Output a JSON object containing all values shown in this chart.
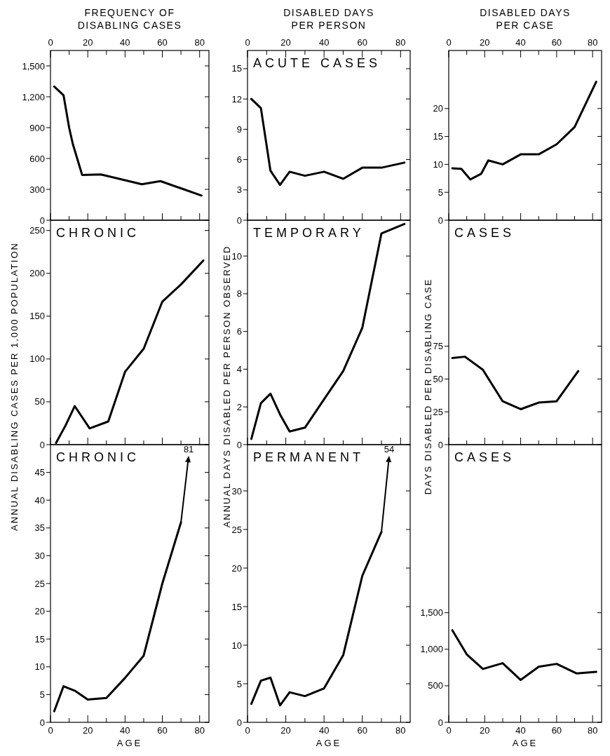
{
  "chart_data": [
    {
      "type": "line",
      "title": "FREQUENCY OF DISABLING CASES",
      "xlim": [
        0,
        85
      ],
      "xticks": [
        0,
        {
          "value": 10,
          "label": null
        },
        20,
        {
          "value": 30,
          "label": null
        },
        40,
        {
          "value": 50,
          "label": null
        },
        60,
        {
          "value": 70,
          "label": null
        },
        80
      ],
      "ylim": [
        0,
        1650
      ],
      "yticks": [
        0,
        300,
        600,
        900,
        {
          "value": 1200,
          "label": "1,200"
        },
        {
          "value": 1500,
          "label": "1,500"
        }
      ],
      "x": [
        2,
        7,
        10,
        12,
        17,
        27,
        49,
        59,
        70,
        81
      ],
      "series": [
        {
          "color": "#000000",
          "values": [
            1300,
            1215,
            900,
            740,
            440,
            445,
            350,
            380,
            310,
            240
          ]
        }
      ]
    },
    {
      "type": "line",
      "title": "DISABLED DAYS PER PERSON",
      "subtitle": "ACUTE CASES",
      "xlim": [
        0,
        85
      ],
      "xticks": [
        0,
        {
          "value": 10,
          "label": null
        },
        20,
        {
          "value": 30,
          "label": null
        },
        40,
        {
          "value": 50,
          "label": null
        },
        60,
        {
          "value": 70,
          "label": null
        },
        80
      ],
      "ylim": [
        0,
        16.8
      ],
      "yticks": [
        0,
        3,
        6,
        9,
        12,
        15
      ],
      "x": [
        2,
        7,
        12,
        17,
        22,
        30,
        40,
        50,
        60,
        70,
        82
      ],
      "series": [
        {
          "color": "#000000",
          "values": [
            12,
            11.1,
            4.9,
            3.5,
            4.8,
            4.4,
            4.8,
            4.1,
            5.2,
            5.2,
            5.7
          ]
        }
      ]
    },
    {
      "type": "line",
      "title": "DISABLED DAYS PER CASE",
      "xlim": [
        0,
        85
      ],
      "xticks": [
        0,
        {
          "value": 10,
          "label": null
        },
        20,
        {
          "value": 30,
          "label": null
        },
        40,
        {
          "value": 50,
          "label": null
        },
        60,
        {
          "value": 70,
          "label": null
        },
        80
      ],
      "ylim": [
        0,
        30.4
      ],
      "yticks": [
        0,
        5,
        10,
        15,
        20
      ],
      "x": [
        2,
        7,
        12,
        18,
        22,
        30,
        40,
        50,
        60,
        70,
        82
      ],
      "series": [
        {
          "color": "#000000",
          "values": [
            9.3,
            9.2,
            7.3,
            8.3,
            10.7,
            10,
            11.8,
            11.8,
            13.6,
            16.7,
            24.8
          ]
        }
      ]
    },
    {
      "type": "line",
      "subtitle": "CHRONIC",
      "ylabel": "ANNUAL DISABLING CASES PER 1,000 POPULATION",
      "xlim": [
        0,
        85
      ],
      "xticks": [
        0,
        {
          "value": 10,
          "label": null
        },
        20,
        {
          "value": 30,
          "label": null
        },
        40,
        {
          "value": 50,
          "label": null
        },
        60,
        {
          "value": 70,
          "label": null
        },
        80
      ],
      "tick_labels": "y",
      "ylim": [
        0,
        262
      ],
      "yticks": [
        0,
        50,
        100,
        150,
        200,
        250
      ],
      "x": [
        3,
        8,
        13,
        21,
        31,
        40,
        50,
        60,
        70,
        82
      ],
      "series": [
        {
          "color": "#000000",
          "values": [
            2,
            22,
            45,
            19,
            27,
            85,
            112,
            167,
            187,
            215
          ]
        }
      ]
    },
    {
      "type": "line",
      "subtitle": "TEMPORARY",
      "ylabel": "ANNUAL DAYS DISABLED PER PERSON OBSERVED",
      "xlim": [
        0,
        85
      ],
      "xticks": [
        0,
        {
          "value": 10,
          "label": null
        },
        20,
        {
          "value": 30,
          "label": null
        },
        40,
        {
          "value": 50,
          "label": null
        },
        60,
        {
          "value": 70,
          "label": null
        },
        80
      ],
      "tick_labels": "y",
      "ylim": [
        0,
        11.9
      ],
      "yticks": [
        0,
        2,
        4,
        6,
        8,
        10
      ],
      "x": [
        2,
        7,
        12,
        17,
        22,
        30,
        40,
        50,
        60,
        70,
        82
      ],
      "series": [
        {
          "color": "#000000",
          "values": [
            0.3,
            2.2,
            2.7,
            1.6,
            0.7,
            0.9,
            2.4,
            3.9,
            6.2,
            11.2,
            11.7
          ]
        }
      ]
    },
    {
      "type": "line",
      "subtitle": "CASES",
      "ylabel": "DAYS DISABLED PER DISABLING CASE",
      "xlim": [
        0,
        85
      ],
      "xticks": [
        0,
        {
          "value": 10,
          "label": null
        },
        20,
        {
          "value": 30,
          "label": null
        },
        40,
        {
          "value": 50,
          "label": null
        },
        60,
        {
          "value": 70,
          "label": null
        },
        80
      ],
      "tick_labels": "y",
      "ylim": [
        0,
        171
      ],
      "yticks": [
        0,
        25,
        50,
        75
      ],
      "x": [
        2,
        9,
        19,
        30,
        40,
        50,
        60,
        72
      ],
      "series": [
        {
          "color": "#000000",
          "values": [
            66,
            67,
            57,
            33,
            27,
            32,
            33,
            56
          ]
        }
      ]
    },
    {
      "type": "line",
      "subtitle": "CHRONIC",
      "xlabel": "AGE",
      "xlim": [
        0,
        85
      ],
      "xticks": [
        0,
        {
          "value": 10,
          "label": null
        },
        20,
        {
          "value": 30,
          "label": null
        },
        40,
        {
          "value": 50,
          "label": null
        },
        60,
        {
          "value": 70,
          "label": null
        },
        80
      ],
      "ylim": [
        0,
        50
      ],
      "yticks": [
        0,
        5,
        10,
        15,
        20,
        25,
        30,
        35,
        40,
        45
      ],
      "x": [
        2,
        7,
        13,
        20,
        30,
        40,
        50,
        60,
        70
      ],
      "series": [
        {
          "color": "#000000",
          "values": [
            2,
            6.5,
            5.7,
            4.1,
            4.4,
            8,
            12,
            25,
            36
          ]
        }
      ],
      "annotations": [
        {
          "text": "81",
          "x": 70,
          "y": 36
        }
      ]
    },
    {
      "type": "line",
      "subtitle": "PERMANENT",
      "xlabel": "AGE",
      "xlim": [
        0,
        85
      ],
      "xticks": [
        0,
        {
          "value": 10,
          "label": null
        },
        20,
        {
          "value": 30,
          "label": null
        },
        40,
        {
          "value": 50,
          "label": null
        },
        60,
        {
          "value": 70,
          "label": null
        },
        80
      ],
      "ylim": [
        0,
        36
      ],
      "yticks": [
        0,
        5,
        10,
        15,
        20,
        25,
        30
      ],
      "x": [
        2,
        7,
        12,
        17,
        22,
        30,
        40,
        50,
        60,
        70
      ],
      "series": [
        {
          "color": "#000000",
          "values": [
            2.4,
            5.4,
            5.8,
            2.2,
            3.9,
            3.4,
            4.4,
            8.7,
            19,
            24.7
          ]
        }
      ],
      "annotations": [
        {
          "text": "54",
          "x": 70,
          "y": 24.7
        }
      ]
    },
    {
      "type": "line",
      "subtitle": "CASES",
      "xlabel": "AGE",
      "xlim": [
        0,
        85
      ],
      "xticks": [
        0,
        {
          "value": 10,
          "label": null
        },
        20,
        {
          "value": 30,
          "label": null
        },
        40,
        {
          "value": 50,
          "label": null
        },
        60,
        {
          "value": 70,
          "label": null
        },
        80
      ],
      "ylim": [
        0,
        3800
      ],
      "yticks": [
        0,
        500,
        {
          "value": 1000,
          "label": "1,000"
        },
        {
          "value": 1500,
          "label": "1,500"
        }
      ],
      "x": [
        2,
        10,
        19,
        30,
        40,
        50,
        60,
        71,
        82
      ],
      "series": [
        {
          "color": "#000000",
          "values": [
            1260,
            930,
            730,
            810,
            580,
            760,
            800,
            670,
            690
          ]
        }
      ]
    }
  ]
}
